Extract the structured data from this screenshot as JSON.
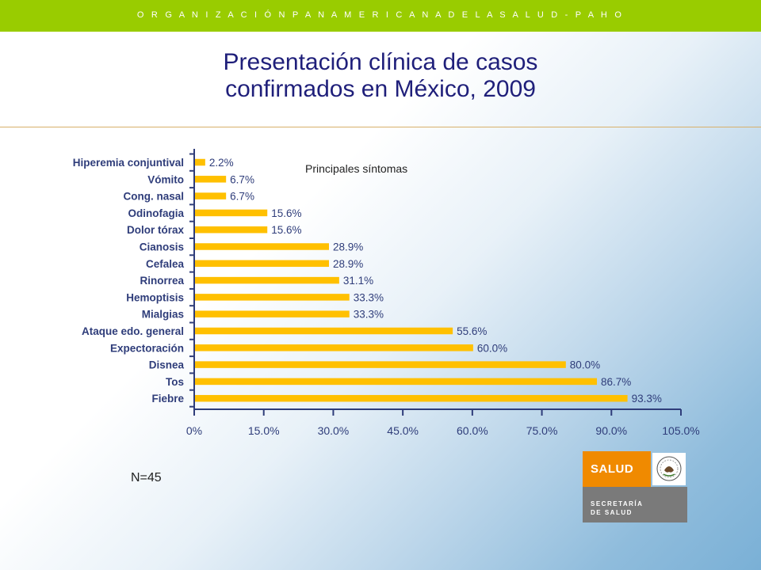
{
  "header": {
    "organization": "O R G A N I Z A C I Ó N   P A N A M E R I C A N A   D E   L A   S A L U D  -  P A H O"
  },
  "title": {
    "line1": "Presentación clínica de casos",
    "line2": "confirmados en México, 2009"
  },
  "chart_data": {
    "type": "bar",
    "orientation": "horizontal",
    "title": "Principales síntomas",
    "categories": [
      "Hiperemia conjuntival",
      "Vómito",
      "Cong. nasal",
      "Odinofagia",
      "Dolor tórax",
      "Cianosis",
      "Cefalea",
      "Rinorrea",
      "Hemoptisis",
      "Mialgias",
      "Ataque edo. general",
      "Expectoración",
      "Disnea",
      "Tos",
      "Fiebre"
    ],
    "values": [
      2.2,
      6.7,
      6.7,
      15.6,
      15.6,
      28.9,
      28.9,
      31.1,
      33.3,
      33.3,
      55.6,
      60.0,
      80.0,
      86.7,
      93.3
    ],
    "value_labels": [
      "2.2%",
      "6.7%",
      "6.7%",
      "15.6%",
      "15.6%",
      "28.9%",
      "28.9%",
      "31.1%",
      "33.3%",
      "33.3%",
      "55.6%",
      "60.0%",
      "80.0%",
      "86.7%",
      "93.3%"
    ],
    "xlim": [
      0,
      105
    ],
    "xticks": [
      0,
      15,
      30,
      45,
      60,
      75,
      90,
      105
    ],
    "xtick_labels": [
      "0%",
      "15.0%",
      "30.0%",
      "45.0%",
      "60.0%",
      "75.0%",
      "90.0%",
      "105.0%"
    ],
    "bar_color": "#ffc000",
    "grid": false
  },
  "note": {
    "n": "N=45"
  },
  "logo": {
    "salud": "SALUD",
    "secretaria": "SECRETARÍA",
    "de_salud": "DE SALUD",
    "orange": "#f08a00",
    "gray": "#7a7a7a"
  },
  "colors": {
    "banner": "#99cc00",
    "title": "#1f1f7a",
    "axis": "#2f3d7a"
  }
}
